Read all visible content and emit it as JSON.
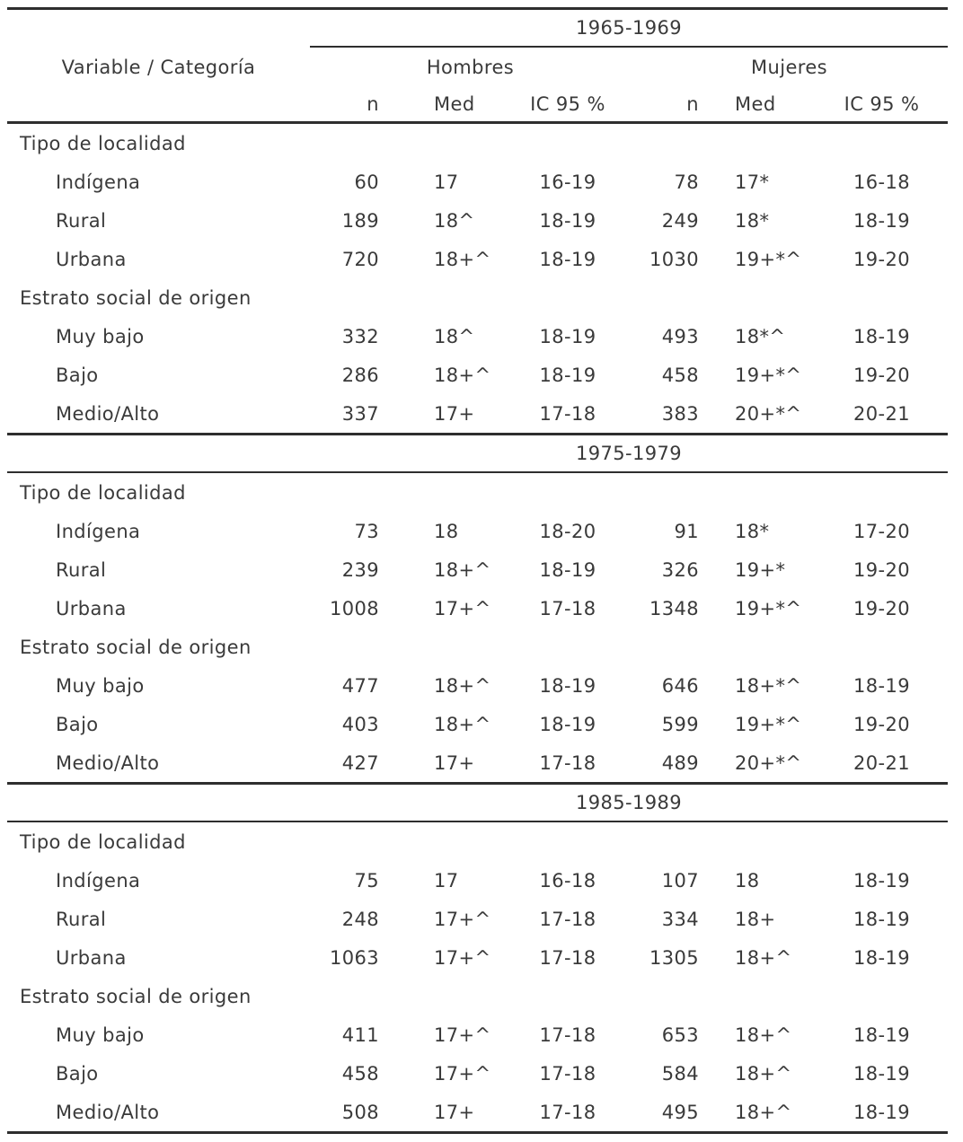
{
  "page": {
    "background": "#ffffff",
    "text_color": "#3a3a3a",
    "rule_color": "#2e2e2e"
  },
  "table": {
    "header": {
      "variable_label": "Variable / Categoría",
      "groups": [
        "Hombres",
        "Mujeres"
      ],
      "subcolumns": [
        "n",
        "Med",
        "IC 95 %",
        "n",
        "Med",
        "IC 95 %"
      ]
    },
    "periods": [
      {
        "label": "1965-1969",
        "groups": [
          {
            "label": "Tipo de localidad",
            "rows": [
              {
                "category": "Indígena",
                "values": [
                  "60",
                  "17",
                  "16-19",
                  "78",
                  "17*",
                  "16-18"
                ]
              },
              {
                "category": "Rural",
                "values": [
                  "189",
                  "18^",
                  "18-19",
                  "249",
                  "18*",
                  "18-19"
                ]
              },
              {
                "category": "Urbana",
                "values": [
                  "720",
                  "18+^",
                  "18-19",
                  "1030",
                  "19+*^",
                  "19-20"
                ]
              }
            ]
          },
          {
            "label": "Estrato social de origen",
            "rows": [
              {
                "category": "Muy bajo",
                "values": [
                  "332",
                  "18^",
                  "18-19",
                  "493",
                  "18*^",
                  "18-19"
                ]
              },
              {
                "category": "Bajo",
                "values": [
                  "286",
                  "18+^",
                  "18-19",
                  "458",
                  "19+*^",
                  "19-20"
                ]
              },
              {
                "category": "Medio/Alto",
                "values": [
                  "337",
                  "17+",
                  "17-18",
                  "383",
                  "20+*^",
                  "20-21"
                ]
              }
            ]
          }
        ]
      },
      {
        "label": "1975-1979",
        "groups": [
          {
            "label": "Tipo de localidad",
            "rows": [
              {
                "category": "Indígena",
                "values": [
                  "73",
                  "18",
                  "18-20",
                  "91",
                  "18*",
                  "17-20"
                ]
              },
              {
                "category": "Rural",
                "values": [
                  "239",
                  "18+^",
                  "18-19",
                  "326",
                  "19+*",
                  "19-20"
                ]
              },
              {
                "category": "Urbana",
                "values": [
                  "1008",
                  "17+^",
                  "17-18",
                  "1348",
                  "19+*^",
                  "19-20"
                ]
              }
            ]
          },
          {
            "label": "Estrato social de origen",
            "rows": [
              {
                "category": "Muy bajo",
                "values": [
                  "477",
                  "18+^",
                  "18-19",
                  "646",
                  "18+*^",
                  "18-19"
                ]
              },
              {
                "category": "Bajo",
                "values": [
                  "403",
                  "18+^",
                  "18-19",
                  "599",
                  "19+*^",
                  "19-20"
                ]
              },
              {
                "category": "Medio/Alto",
                "values": [
                  "427",
                  "17+",
                  "17-18",
                  "489",
                  "20+*^",
                  "20-21"
                ]
              }
            ]
          }
        ]
      },
      {
        "label": "1985-1989",
        "groups": [
          {
            "label": "Tipo de localidad",
            "rows": [
              {
                "category": "Indígena",
                "values": [
                  "75",
                  "17",
                  "16-18",
                  "107",
                  "18",
                  "18-19"
                ]
              },
              {
                "category": "Rural",
                "values": [
                  "248",
                  "17+^",
                  "17-18",
                  "334",
                  "18+",
                  "18-19"
                ]
              },
              {
                "category": "Urbana",
                "values": [
                  "1063",
                  "17+^",
                  "17-18",
                  "1305",
                  "18+^",
                  "18-19"
                ]
              }
            ]
          },
          {
            "label": "Estrato social de origen",
            "rows": [
              {
                "category": "Muy bajo",
                "values": [
                  "411",
                  "17+^",
                  "17-18",
                  "653",
                  "18+^",
                  "18-19"
                ]
              },
              {
                "category": "Bajo",
                "values": [
                  "458",
                  "17+^",
                  "17-18",
                  "584",
                  "18+^",
                  "18-19"
                ]
              },
              {
                "category": "Medio/Alto",
                "values": [
                  "508",
                  "17+",
                  "17-18",
                  "495",
                  "18+^",
                  "18-19"
                ]
              }
            ]
          }
        ]
      }
    ]
  }
}
